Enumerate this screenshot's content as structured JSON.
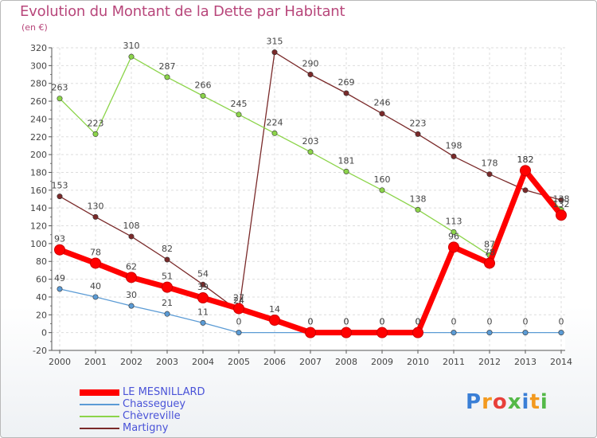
{
  "title": "Evolution du Montant de la Dette par Habitant",
  "unit": "(en €)",
  "logo_text": "Proxiti",
  "chart_data": {
    "type": "line",
    "title": "Evolution du Montant de la Dette par Habitant",
    "subtitle": "(en €)",
    "x": [
      "2000",
      "2001",
      "2002",
      "2003",
      "2004",
      "2005",
      "2006",
      "2007",
      "2008",
      "2009",
      "2010",
      "2011",
      "2012",
      "2013",
      "2014"
    ],
    "ylim": [
      -20,
      320
    ],
    "yticks": [
      -20,
      0,
      20,
      40,
      60,
      80,
      100,
      120,
      140,
      160,
      180,
      200,
      220,
      240,
      260,
      280,
      300,
      320
    ],
    "grid": true,
    "legend_position": "bottom-left",
    "series": [
      {
        "name": "LE MESNILLARD",
        "color": "#ff0000",
        "values": [
          93,
          78,
          62,
          51,
          39,
          27,
          14,
          0,
          0,
          0,
          0,
          96,
          78,
          182,
          132
        ]
      },
      {
        "name": "Chasseguey",
        "color": "#5b9bd5",
        "values": [
          49,
          40,
          30,
          21,
          11,
          0,
          null,
          0,
          0,
          0,
          0,
          0,
          0,
          0,
          0
        ]
      },
      {
        "name": "Chèvreville",
        "color": "#8cd44a",
        "values": [
          263,
          223,
          310,
          287,
          266,
          245,
          224,
          203,
          181,
          160,
          138,
          113,
          87,
          182,
          138
        ]
      },
      {
        "name": "Martigny",
        "color": "#7a2a2a",
        "values": [
          153,
          130,
          108,
          82,
          54,
          24,
          315,
          290,
          269,
          246,
          223,
          198,
          178,
          160,
          149
        ]
      }
    ],
    "point_labels": [
      {
        "series": 0,
        "labels": [
          "93",
          "78",
          "62",
          "51",
          "39",
          "27",
          "14",
          "0",
          "0",
          "0",
          "0",
          "96",
          "78",
          "182",
          "132"
        ]
      },
      {
        "series": 1,
        "labels": [
          "49",
          "40",
          "30",
          "21",
          "11",
          "0",
          "",
          "0",
          "0",
          "0",
          "0",
          "0",
          "0",
          "0",
          "0"
        ]
      },
      {
        "series": 2,
        "labels": [
          "263",
          "223",
          "310",
          "287",
          "266",
          "245",
          "224",
          "203",
          "181",
          "160",
          "138",
          "113",
          "87",
          "182",
          "138"
        ]
      },
      {
        "series": 3,
        "labels": [
          "153",
          "130",
          "108",
          "82",
          "54",
          "24",
          "315",
          "290",
          "269",
          "246",
          "223",
          "198",
          "178",
          "",
          ""
        ]
      }
    ]
  }
}
